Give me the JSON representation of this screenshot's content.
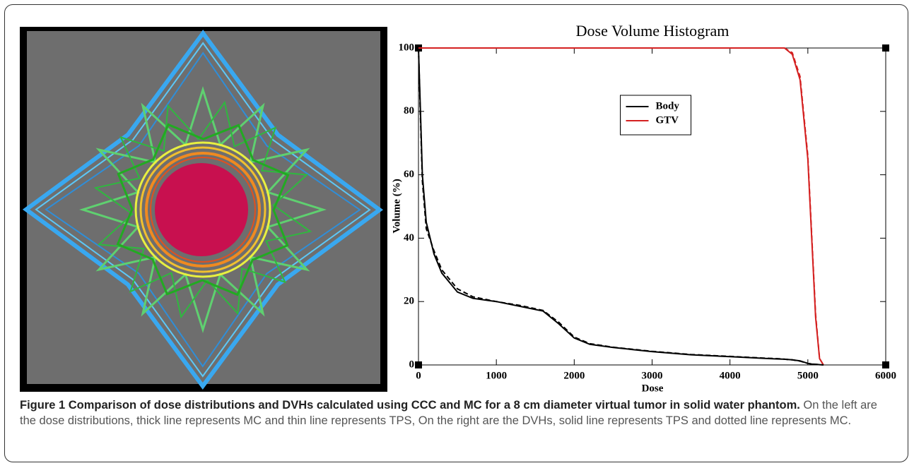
{
  "chart_data": {
    "type": "line",
    "title": "Dose Volume Histogram",
    "xlabel": "Dose",
    "ylabel": "Volume (%)",
    "x": [
      0,
      25,
      50,
      100,
      200,
      300,
      500,
      700,
      1000,
      1300,
      1600,
      1800,
      2000,
      2200,
      2500,
      3000,
      3500,
      4000,
      4500,
      4600,
      4700,
      4800,
      4900,
      5000,
      5050,
      5100,
      5150,
      5200,
      5300
    ],
    "series": [
      {
        "name": "Body",
        "color": "#000000",
        "dash": false,
        "values": [
          100,
          80,
          60,
          45,
          35,
          29,
          23,
          21,
          20,
          18.5,
          17,
          13,
          8.5,
          6.5,
          5.5,
          4.2,
          3.2,
          2.6,
          2,
          1.9,
          1.8,
          1.6,
          1.3,
          0.5,
          0.3,
          0.2,
          0.1,
          0,
          null
        ]
      },
      {
        "name": "GTV",
        "color": "#d42020",
        "dash": false,
        "values": [
          100,
          100,
          100,
          100,
          100,
          100,
          100,
          100,
          100,
          100,
          100,
          100,
          100,
          100,
          100,
          100,
          100,
          100,
          100,
          100,
          100,
          98,
          90,
          65,
          40,
          15,
          2,
          0,
          null
        ]
      },
      {
        "color": "#000000",
        "dash": true,
        "values": [
          100,
          78,
          58,
          43,
          36,
          30,
          24,
          21.5,
          20,
          18.8,
          17.2,
          13.5,
          8.8,
          6.7,
          5.6,
          4.3,
          3.3,
          2.7,
          2.1,
          2,
          1.8,
          1.6,
          1.2,
          0.5,
          0.3,
          0.2,
          0.1,
          0,
          null
        ]
      },
      {
        "color": "#d42020",
        "dash": true,
        "values": [
          100,
          100,
          100,
          100,
          100,
          100,
          100,
          100,
          100,
          100,
          100,
          100,
          100,
          100,
          100,
          100,
          100,
          100,
          100,
          100,
          100,
          98.5,
          91,
          66,
          41,
          16,
          2,
          0,
          null
        ]
      }
    ],
    "xlim": [
      0,
      6000
    ],
    "ylim": [
      0,
      100
    ],
    "xticks": [
      0,
      1000,
      2000,
      3000,
      4000,
      5000,
      6000
    ],
    "yticks": [
      0,
      20,
      40,
      60,
      80,
      100
    ],
    "legend": "upper center"
  },
  "caption": {
    "label": "Figure 1 Comparison of dose distributions and DVHs calculated using CCC and MC for a 8 cm diameter virtual tumor in solid water phantom.",
    "text": "On the left are the dose distributions, thick line represents MC and thin line represents TPS, On the right are the DVHs, solid line represents TPS and dotted line represents MC."
  }
}
